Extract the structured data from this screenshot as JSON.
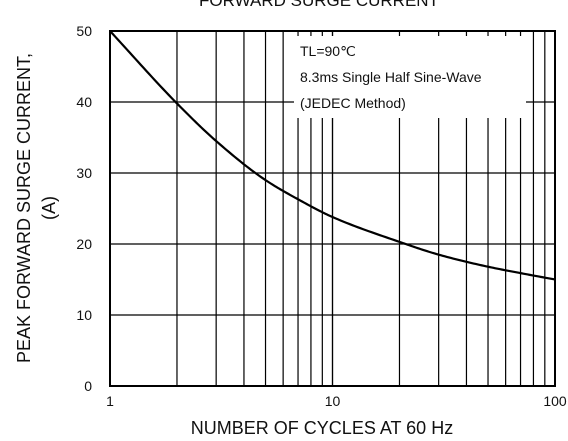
{
  "chart_data": {
    "type": "line",
    "title": "FORWARD SURGE CURRENT",
    "xlabel": "NUMBER OF CYCLES AT 60 Hz",
    "ylabel_line1": "PEAK FORWARD SURGE CURRENT,",
    "ylabel_line2": "(A)",
    "x_scale": "log",
    "xlim": [
      1,
      100
    ],
    "ylim": [
      0,
      50
    ],
    "x_ticks": [
      1,
      10,
      100
    ],
    "x_tick_labels": [
      "1",
      "10",
      "100"
    ],
    "y_ticks": [
      0,
      10,
      20,
      30,
      40,
      50
    ],
    "y_tick_labels": [
      "0",
      "10",
      "20",
      "30",
      "40",
      "50"
    ],
    "grid": true,
    "annotation_lines": [
      "TL=90℃",
      "8.3ms Single Half Sine-Wave",
      "(JEDEC Method)"
    ],
    "series": [
      {
        "x": [
          1,
          2,
          3,
          5,
          7,
          10,
          20,
          30,
          50,
          70,
          100
        ],
        "y": [
          50,
          39.8,
          34.5,
          29,
          26.3,
          23.8,
          20.3,
          18.5,
          16.8,
          15.9,
          15
        ]
      }
    ]
  }
}
